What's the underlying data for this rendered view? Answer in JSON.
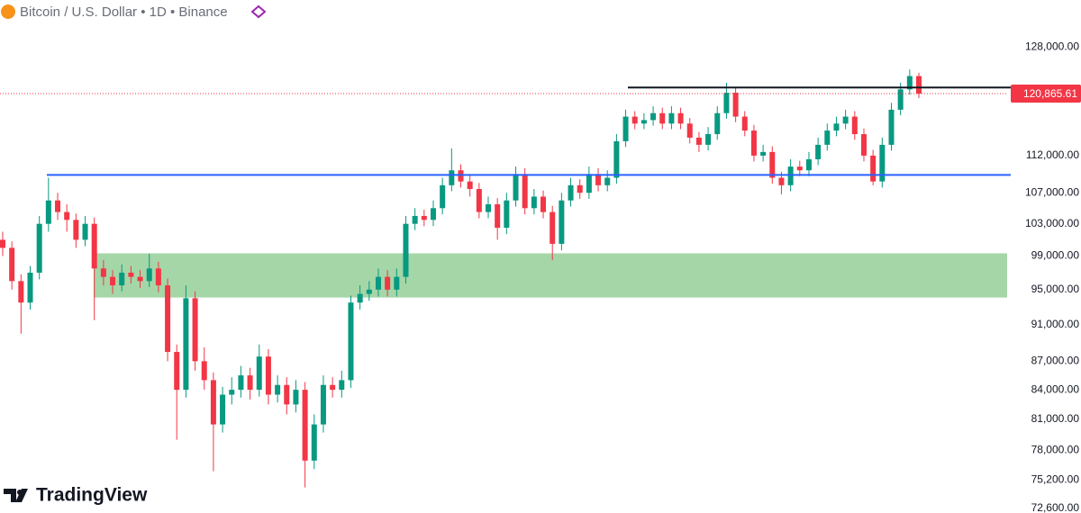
{
  "chart_data": {
    "type": "candlestick",
    "title": "Bitcoin / U.S. Dollar • 1D • Binance",
    "brand": "TradingView",
    "log_scale": true,
    "up_color": "#089981",
    "down_color": "#f23645",
    "ylim": [
      72200,
      135600
    ],
    "yticks": [
      {
        "value": 128000,
        "label": "128,000.00"
      },
      {
        "value": 112000,
        "label": "112,000.00"
      },
      {
        "value": 107000,
        "label": "107,000.00"
      },
      {
        "value": 103000,
        "label": "103,000.00"
      },
      {
        "value": 99000,
        "label": "99,000.00"
      },
      {
        "value": 95000,
        "label": "95,000.00"
      },
      {
        "value": 91000,
        "label": "91,000.00"
      },
      {
        "value": 87000,
        "label": "87,000.00"
      },
      {
        "value": 84000,
        "label": "84,000.00"
      },
      {
        "value": 81000,
        "label": "81,000.00"
      },
      {
        "value": 78000,
        "label": "78,000.00"
      },
      {
        "value": 75200,
        "label": "75,200.00"
      },
      {
        "value": 72600,
        "label": "72,600.00"
      }
    ],
    "zone": {
      "values": [
        94080,
        99330
      ],
      "color": "#a5d6a7"
    },
    "levels": [
      {
        "value": 109380,
        "color": "#2962ff"
      },
      {
        "value": 121780,
        "color": "#131722"
      }
    ],
    "last_price": {
      "value": 120865.61,
      "label": "120,865.61",
      "color": "#f23645"
    },
    "open": [
      101000,
      100000,
      96000,
      93500,
      97000,
      103000,
      106000,
      104500,
      103500,
      101000,
      103000,
      97500,
      96500,
      95500,
      97000,
      96500,
      96000,
      97500,
      95500,
      88000,
      84000,
      94000,
      87000,
      85000,
      80500,
      83500,
      84000,
      85500,
      84000,
      87500,
      83500,
      84500,
      82500,
      84000,
      77000,
      80500,
      84500,
      84000,
      85000,
      93500,
      94500,
      95000,
      96500,
      95000,
      96500,
      103000,
      104000,
      103500,
      105000,
      108000,
      110000,
      108500,
      107500,
      104500,
      105500,
      102500,
      106000,
      109500,
      105000,
      106500,
      104500,
      100500,
      106000,
      108000,
      107000,
      109500,
      108000,
      109000,
      114000,
      117500,
      116500,
      117000,
      118000,
      116500,
      118000,
      116500,
      114500,
      113500,
      115000,
      118000,
      121000,
      117500,
      115500,
      112000,
      112500,
      109000,
      108000,
      110500,
      110000,
      111500,
      113500,
      115500,
      116500,
      117500,
      115000,
      112000,
      108500,
      113500,
      118500,
      121500,
      123500
    ],
    "high": [
      102000,
      100800,
      96800,
      97800,
      104000,
      109000,
      107000,
      105500,
      104300,
      104000,
      103800,
      98500,
      97300,
      98000,
      97800,
      97300,
      99300,
      98300,
      96300,
      88800,
      95500,
      94800,
      88500,
      85800,
      84300,
      85300,
      86500,
      86300,
      88800,
      88300,
      85500,
      85300,
      85000,
      84800,
      81500,
      85500,
      85300,
      86000,
      94300,
      95500,
      96000,
      97500,
      97300,
      97500,
      104000,
      105000,
      104800,
      106000,
      109000,
      113000,
      110800,
      109300,
      108300,
      106500,
      106300,
      107000,
      110500,
      110300,
      107500,
      107300,
      105300,
      107000,
      109000,
      108800,
      110500,
      110300,
      110000,
      115000,
      118500,
      118300,
      118000,
      119000,
      118800,
      119000,
      118800,
      117300,
      115300,
      116000,
      119000,
      122500,
      121800,
      118300,
      116300,
      113500,
      113300,
      109800,
      111500,
      111300,
      112500,
      114500,
      116500,
      117500,
      118500,
      118300,
      115800,
      112800,
      114500,
      119500,
      122500,
      124500,
      124000
    ],
    "low": [
      99000,
      95000,
      90000,
      92700,
      96200,
      102000,
      103500,
      102000,
      100000,
      100200,
      91500,
      95500,
      94500,
      94800,
      95700,
      95200,
      95300,
      94700,
      87000,
      79000,
      83200,
      86000,
      84000,
      76000,
      79700,
      82500,
      83200,
      83000,
      83300,
      82500,
      82700,
      81500,
      81700,
      74500,
      76200,
      79700,
      83200,
      83200,
      84200,
      92700,
      93700,
      94200,
      94200,
      94200,
      95700,
      102200,
      102700,
      102700,
      104200,
      107200,
      107700,
      106500,
      103700,
      103700,
      101000,
      101700,
      105200,
      104200,
      104200,
      103700,
      98500,
      99700,
      105200,
      106200,
      106200,
      107200,
      107200,
      108200,
      113200,
      115700,
      115700,
      116200,
      115700,
      115700,
      115700,
      113700,
      112500,
      112700,
      114200,
      117200,
      116700,
      114700,
      111200,
      111200,
      108200,
      106800,
      107200,
      109200,
      109200,
      110700,
      112700,
      114700,
      115700,
      114200,
      111200,
      108000,
      107700,
      112700,
      117700,
      120700,
      120200
    ],
    "close": [
      100000,
      96000,
      93500,
      97000,
      103000,
      106000,
      104500,
      103500,
      101000,
      103000,
      97500,
      96500,
      95500,
      97000,
      96500,
      96000,
      97500,
      95500,
      88000,
      84000,
      94000,
      87000,
      85000,
      80500,
      83500,
      84000,
      85500,
      84000,
      87500,
      83500,
      84500,
      82500,
      84000,
      77000,
      80500,
      84500,
      84000,
      85000,
      93500,
      94500,
      95000,
      96500,
      95000,
      96500,
      103000,
      104000,
      103500,
      105000,
      108000,
      110000,
      108500,
      107500,
      104500,
      105500,
      102500,
      106000,
      109500,
      105000,
      106500,
      104500,
      100500,
      106000,
      108000,
      107000,
      109500,
      108000,
      109000,
      114000,
      117500,
      116500,
      117000,
      118000,
      116500,
      118000,
      116500,
      114500,
      113500,
      115000,
      118000,
      121000,
      117500,
      115500,
      112000,
      112500,
      109000,
      108000,
      110500,
      110000,
      111500,
      113500,
      115500,
      116500,
      117500,
      115000,
      112000,
      108500,
      113500,
      118500,
      121500,
      123500,
      120865.61
    ]
  }
}
